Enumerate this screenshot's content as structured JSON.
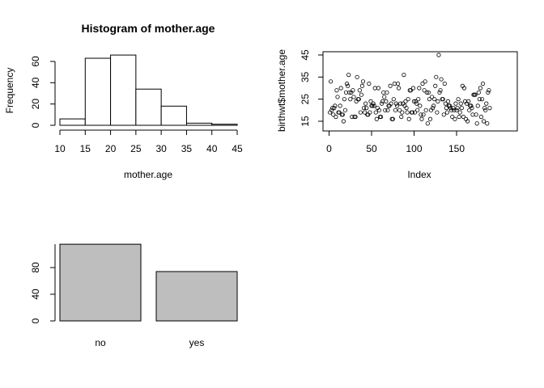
{
  "chart_data": [
    {
      "type": "bar",
      "title": "Histogram of mother.age",
      "xlabel": "mother.age",
      "ylabel": "Frequency",
      "bin_edges": [
        10,
        15,
        20,
        25,
        30,
        35,
        40,
        45
      ],
      "values": [
        6,
        63,
        66,
        34,
        18,
        2,
        1
      ],
      "xlim": [
        10,
        45
      ],
      "ylim": [
        0,
        70
      ],
      "x_ticks": [
        "10",
        "15",
        "20",
        "25",
        "30",
        "35",
        "40",
        "45"
      ],
      "y_ticks": [
        "0",
        "20",
        "40",
        "60"
      ],
      "y_tick_values": [
        0,
        20,
        40,
        60
      ],
      "x_tick_values": [
        10,
        15,
        20,
        25,
        30,
        35,
        40,
        45
      ],
      "fill": "#ffffff",
      "grid": false
    },
    {
      "type": "scatter",
      "title": "",
      "xlabel": "Index",
      "ylabel": "birthwt$mother.age",
      "xlim": [
        1,
        189
      ],
      "ylim": [
        14,
        45
      ],
      "x_ticks": [
        "0",
        "50",
        "100",
        "150"
      ],
      "x_tick_values": [
        0,
        50,
        100,
        150
      ],
      "y_ticks": [
        "15",
        "25",
        "35",
        "45"
      ],
      "y_tick_values": [
        15,
        25,
        35,
        45
      ],
      "marker": "open-circle",
      "grid": false,
      "y": [
        19,
        33,
        20,
        21,
        18,
        21,
        22,
        17,
        29,
        26,
        19,
        19,
        22,
        30,
        18,
        18,
        15,
        25,
        20,
        28,
        32,
        31,
        36,
        28,
        25,
        28,
        17,
        29,
        26,
        17,
        17,
        24,
        35,
        25,
        25,
        29,
        19,
        27,
        31,
        33,
        21,
        19,
        23,
        21,
        18,
        18,
        32,
        19,
        24,
        22,
        22,
        23,
        22,
        30,
        19,
        16,
        21,
        30,
        20,
        17,
        17,
        23,
        24,
        28,
        26,
        20,
        24,
        28,
        20,
        22,
        22,
        31,
        23,
        16,
        16,
        25,
        32,
        20,
        23,
        22,
        32,
        30,
        20,
        23,
        17,
        19,
        23,
        36,
        22,
        24,
        21,
        19,
        25,
        16,
        29,
        29,
        19,
        19,
        30,
        24,
        19,
        24,
        23,
        20,
        25,
        30,
        22,
        18,
        16,
        32,
        18,
        29,
        33,
        20,
        28,
        14,
        28,
        25,
        16,
        20,
        26,
        21,
        22,
        25,
        31,
        35,
        19,
        24,
        45,
        28,
        29,
        34,
        25,
        25,
        18,
        32,
        23,
        21,
        19,
        24,
        22,
        22,
        21,
        20,
        17,
        21,
        20,
        16,
        23,
        20,
        21,
        25,
        17,
        19,
        23,
        21,
        31,
        17,
        30,
        24,
        16,
        23,
        15,
        24,
        20,
        22,
        22,
        21,
        18,
        27,
        27,
        27,
        18,
        14,
        22,
        28,
        25,
        30,
        17,
        25,
        32,
        15,
        21,
        20,
        23,
        14,
        28,
        29,
        21
      ]
    },
    {
      "type": "bar",
      "title": "",
      "categories": [
        "no",
        "yes"
      ],
      "values": [
        115,
        74
      ],
      "ylim": [
        0,
        115
      ],
      "y_ticks": [
        "0",
        "40",
        "80"
      ],
      "y_tick_values": [
        0,
        40,
        80
      ],
      "fill": "#bebebe",
      "grid": false
    }
  ]
}
